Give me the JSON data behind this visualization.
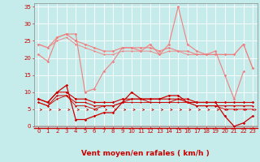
{
  "background_color": "#c5ecea",
  "grid_color": "#aacfcf",
  "xlabel": "Vent moyen/en rafales ( km/h )",
  "xlim": [
    -0.5,
    23.5
  ],
  "ylim": [
    0,
    36
  ],
  "yticks": [
    0,
    5,
    10,
    15,
    20,
    25,
    30,
    35
  ],
  "xticks": [
    0,
    1,
    2,
    3,
    4,
    5,
    6,
    7,
    8,
    9,
    10,
    11,
    12,
    13,
    14,
    15,
    16,
    17,
    18,
    19,
    20,
    21,
    22,
    23
  ],
  "series": [
    {
      "x": [
        0,
        1,
        2,
        3,
        4,
        5,
        6,
        7,
        8,
        9,
        10,
        11,
        12,
        13,
        14,
        15,
        16,
        17,
        18,
        19,
        20,
        21,
        22,
        23
      ],
      "y": [
        21,
        19,
        26,
        27,
        27,
        10,
        11,
        16,
        19,
        23,
        23,
        22,
        24,
        21,
        24,
        35,
        24,
        22,
        21,
        22,
        15,
        8,
        16,
        null
      ],
      "color": "#f08080",
      "lw": 0.8,
      "marker": "D",
      "ms": 1.8
    },
    {
      "x": [
        0,
        1,
        2,
        3,
        4,
        5,
        6,
        7,
        8,
        9,
        10,
        11,
        12,
        13,
        14,
        15,
        16,
        17,
        18,
        19,
        20,
        21,
        22,
        23
      ],
      "y": [
        24,
        23,
        26,
        27,
        25,
        24,
        23,
        22,
        22,
        23,
        23,
        23,
        23,
        22,
        23,
        22,
        22,
        21,
        21,
        21,
        21,
        21,
        24,
        17
      ],
      "color": "#f08080",
      "lw": 0.8,
      "marker": "D",
      "ms": 1.8
    },
    {
      "x": [
        0,
        1,
        2,
        3,
        4,
        5,
        6,
        7,
        8,
        9,
        10,
        11,
        12,
        13,
        14,
        15,
        16,
        17,
        18,
        19,
        20,
        21,
        22,
        23
      ],
      "y": [
        24,
        23,
        25,
        26,
        24,
        23,
        22,
        21,
        21,
        22,
        22,
        22,
        22,
        21,
        22,
        22,
        21,
        21,
        21,
        21,
        21,
        21,
        24,
        17
      ],
      "color": "#f08080",
      "lw": 0.6,
      "marker": "D",
      "ms": 1.4
    },
    {
      "x": [
        0,
        1,
        2,
        3,
        4,
        5,
        6,
        7,
        8,
        9,
        10,
        11,
        12,
        13,
        14,
        15,
        16,
        17,
        18,
        19,
        20,
        21,
        22,
        23
      ],
      "y": [
        8,
        7,
        10,
        12,
        2,
        2,
        3,
        4,
        4,
        7,
        10,
        8,
        8,
        8,
        9,
        9,
        7,
        7,
        7,
        7,
        3,
        0,
        1,
        3
      ],
      "color": "#cc0000",
      "lw": 0.9,
      "marker": "D",
      "ms": 1.8
    },
    {
      "x": [
        0,
        1,
        2,
        3,
        4,
        5,
        6,
        7,
        8,
        9,
        10,
        11,
        12,
        13,
        14,
        15,
        16,
        17,
        18,
        19,
        20,
        21,
        22,
        23
      ],
      "y": [
        8,
        7,
        10,
        10,
        8,
        8,
        7,
        7,
        7,
        8,
        8,
        8,
        8,
        8,
        8,
        8,
        8,
        7,
        7,
        7,
        7,
        7,
        7,
        7
      ],
      "color": "#cc0000",
      "lw": 0.8,
      "marker": "D",
      "ms": 1.8
    },
    {
      "x": [
        0,
        1,
        2,
        3,
        4,
        5,
        6,
        7,
        8,
        9,
        10,
        11,
        12,
        13,
        14,
        15,
        16,
        17,
        18,
        19,
        20,
        21,
        22,
        23
      ],
      "y": [
        7,
        6,
        9,
        9,
        7,
        7,
        6,
        6,
        6,
        7,
        8,
        8,
        7,
        7,
        7,
        8,
        7,
        6,
        6,
        6,
        6,
        6,
        6,
        6
      ],
      "color": "#cc0000",
      "lw": 0.7,
      "marker": "D",
      "ms": 1.4
    },
    {
      "x": [
        0,
        1,
        2,
        3,
        4,
        5,
        6,
        7,
        8,
        9,
        10,
        11,
        12,
        13,
        14,
        15,
        16,
        17,
        18,
        19,
        20,
        21,
        22,
        23
      ],
      "y": [
        7,
        6,
        8,
        9,
        6,
        6,
        5,
        6,
        6,
        7,
        7,
        7,
        7,
        7,
        7,
        7,
        7,
        6,
        6,
        6,
        5,
        5,
        5,
        5
      ],
      "color": "#cc0000",
      "lw": 0.6,
      "marker": "D",
      "ms": 1.4
    }
  ],
  "tick_fontsize": 5.0,
  "xlabel_fontsize": 6.5,
  "xlabel_color": "#cc0000",
  "tick_color": "#cc0000",
  "axis_color": "#cc0000",
  "spine_color": "#888888"
}
